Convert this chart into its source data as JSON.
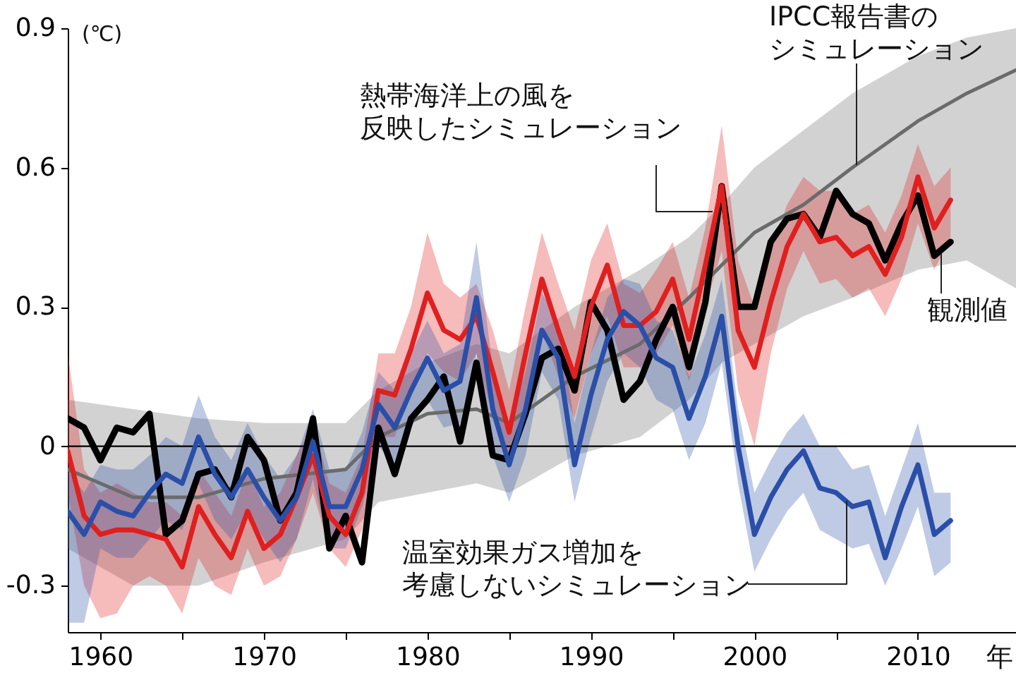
{
  "chart_data": {
    "type": "line",
    "ylabel": "(℃)",
    "xlabel": "年",
    "x": [
      1958,
      1959,
      1960,
      1961,
      1962,
      1963,
      1964,
      1965,
      1966,
      1967,
      1968,
      1969,
      1970,
      1971,
      1972,
      1973,
      1974,
      1975,
      1976,
      1977,
      1978,
      1979,
      1980,
      1981,
      1982,
      1983,
      1984,
      1985,
      1986,
      1987,
      1988,
      1989,
      1990,
      1991,
      1992,
      1993,
      1994,
      1995,
      1996,
      1997,
      1998,
      1999,
      2000,
      2001,
      2002,
      2003,
      2004,
      2005,
      2006,
      2007,
      2008,
      2009,
      2010,
      2011,
      2012
    ],
    "xlim": [
      1958,
      2016
    ],
    "xticks": [
      1960,
      {
        "value": 1965,
        "label": null
      },
      1970,
      {
        "value": 1975,
        "label": null
      },
      1980,
      {
        "value": 1985,
        "label": null
      },
      1990,
      {
        "value": 1995,
        "label": null
      },
      2000,
      {
        "value": 2005,
        "label": null
      },
      2010
    ],
    "ylim": [
      -0.4,
      0.9
    ],
    "yticks": [
      -0.3,
      0,
      0.3,
      0.6,
      0.9
    ],
    "grid": false,
    "marker": "none",
    "line_style": "solid",
    "ref_lines": [
      {
        "axis": "y",
        "value": 0,
        "color": "#000000"
      }
    ],
    "series": [
      {
        "name": "IPCC報告書のシミュレーション",
        "color": "#6b6b6b",
        "x": [
          1958,
          1962,
          1966,
          1970,
          1975,
          1977,
          1980,
          1983,
          1985,
          1989,
          1993,
          1996,
          1998,
          2000,
          2003,
          2006,
          2010,
          2013,
          2016
        ],
        "values": [
          -0.05,
          -0.11,
          -0.11,
          -0.07,
          -0.05,
          0.02,
          0.07,
          0.08,
          0.05,
          0.15,
          0.22,
          0.32,
          0.39,
          0.46,
          0.52,
          0.6,
          0.7,
          0.76,
          0.81
        ],
        "lower": [
          -0.22,
          -0.3,
          -0.3,
          -0.25,
          -0.2,
          -0.12,
          -0.1,
          -0.08,
          -0.1,
          -0.02,
          0.02,
          0.1,
          0.18,
          0.22,
          0.28,
          0.32,
          0.38,
          0.4,
          0.34
        ],
        "upper": [
          0.1,
          0.08,
          0.06,
          0.05,
          0.05,
          0.12,
          0.18,
          0.22,
          0.2,
          0.3,
          0.38,
          0.45,
          0.52,
          0.6,
          0.68,
          0.76,
          0.84,
          0.88,
          0.9
        ]
      },
      {
        "name": "観測値",
        "color": "#000000",
        "values": [
          0.06,
          0.04,
          -0.03,
          0.04,
          0.03,
          0.07,
          -0.19,
          -0.16,
          -0.06,
          -0.05,
          -0.11,
          0.02,
          -0.03,
          -0.16,
          -0.1,
          0.06,
          -0.22,
          -0.15,
          -0.25,
          0.04,
          -0.06,
          0.06,
          0.1,
          0.15,
          0.01,
          0.18,
          -0.02,
          -0.03,
          0.07,
          0.19,
          0.21,
          0.12,
          0.31,
          0.25,
          0.1,
          0.14,
          0.23,
          0.3,
          0.17,
          0.31,
          0.56,
          0.3,
          0.3,
          0.44,
          0.49,
          0.5,
          0.45,
          0.55,
          0.5,
          0.48,
          0.4,
          0.48,
          0.54,
          0.41,
          0.44
        ]
      },
      {
        "name": "熱帯海洋上の風を反映したシミュレーション",
        "color": "#e01f1f",
        "values": [
          -0.01,
          -0.15,
          -0.19,
          -0.18,
          -0.18,
          -0.19,
          -0.2,
          -0.26,
          -0.13,
          -0.19,
          -0.24,
          -0.14,
          -0.22,
          -0.19,
          -0.11,
          -0.02,
          -0.15,
          -0.19,
          -0.1,
          0.12,
          0.11,
          0.21,
          0.33,
          0.25,
          0.23,
          0.28,
          0.16,
          0.03,
          0.2,
          0.36,
          0.25,
          0.15,
          0.3,
          0.39,
          0.26,
          0.26,
          0.29,
          0.36,
          0.23,
          0.39,
          0.56,
          0.25,
          0.17,
          0.31,
          0.43,
          0.5,
          0.44,
          0.45,
          0.41,
          0.43,
          0.37,
          0.45,
          0.58,
          0.47,
          0.53
        ],
        "upper": [
          0.2,
          -0.05,
          -0.1,
          -0.08,
          -0.1,
          -0.12,
          -0.12,
          -0.15,
          -0.05,
          -0.1,
          -0.15,
          -0.05,
          -0.13,
          -0.1,
          -0.02,
          0.05,
          -0.08,
          -0.1,
          -0.02,
          0.2,
          0.2,
          0.3,
          0.46,
          0.35,
          0.32,
          0.35,
          0.25,
          0.12,
          0.3,
          0.46,
          0.35,
          0.25,
          0.4,
          0.48,
          0.35,
          0.33,
          0.38,
          0.44,
          0.32,
          0.47,
          0.69,
          0.4,
          0.3,
          0.42,
          0.52,
          0.58,
          0.55,
          0.55,
          0.5,
          0.52,
          0.46,
          0.54,
          0.65,
          0.56,
          0.6
        ],
        "lower": [
          -0.1,
          -0.3,
          -0.37,
          -0.36,
          -0.3,
          -0.28,
          -0.3,
          -0.36,
          -0.24,
          -0.3,
          -0.32,
          -0.22,
          -0.3,
          -0.28,
          -0.2,
          -0.1,
          -0.22,
          -0.26,
          -0.18,
          0.02,
          0.02,
          0.12,
          0.2,
          0.16,
          0.14,
          0.2,
          0.06,
          -0.05,
          0.1,
          0.25,
          0.15,
          0.06,
          0.2,
          0.28,
          0.17,
          0.17,
          0.2,
          0.26,
          0.14,
          0.3,
          0.42,
          0.12,
          0.0,
          0.2,
          0.34,
          0.42,
          0.35,
          0.36,
          0.32,
          0.34,
          0.28,
          0.36,
          0.48,
          0.38,
          0.45
        ]
      },
      {
        "name": "温室効果ガス増加を考慮しないシミュレーション",
        "color": "#2a4fa8",
        "values": [
          -0.14,
          -0.19,
          -0.12,
          -0.14,
          -0.15,
          -0.1,
          -0.06,
          -0.08,
          0.02,
          -0.06,
          -0.11,
          -0.05,
          -0.11,
          -0.16,
          -0.11,
          0.01,
          -0.13,
          -0.13,
          -0.05,
          0.09,
          0.04,
          0.12,
          0.19,
          0.12,
          0.14,
          0.32,
          0.08,
          -0.04,
          0.08,
          0.25,
          0.19,
          -0.04,
          0.11,
          0.23,
          0.29,
          0.26,
          0.19,
          0.17,
          0.06,
          0.15,
          0.28,
          0.0,
          -0.19,
          -0.11,
          -0.05,
          -0.01,
          -0.09,
          -0.1,
          -0.13,
          -0.12,
          -0.24,
          -0.13,
          -0.04,
          -0.19,
          -0.16
        ],
        "upper": [
          -0.05,
          -0.1,
          -0.04,
          -0.05,
          -0.05,
          -0.02,
          0.02,
          0.0,
          0.11,
          0.02,
          -0.03,
          0.05,
          -0.02,
          -0.07,
          -0.02,
          0.08,
          -0.05,
          -0.05,
          0.03,
          0.16,
          0.12,
          0.2,
          0.27,
          0.2,
          0.22,
          0.44,
          0.17,
          0.05,
          0.16,
          0.33,
          0.27,
          0.05,
          0.2,
          0.32,
          0.36,
          0.35,
          0.27,
          0.25,
          0.15,
          0.24,
          0.36,
          0.08,
          -0.1,
          -0.03,
          0.03,
          0.07,
          0.0,
          0.0,
          -0.05,
          -0.04,
          -0.15,
          -0.05,
          0.05,
          -0.1,
          -0.1
        ],
        "lower": [
          -0.38,
          -0.38,
          -0.22,
          -0.24,
          -0.24,
          -0.2,
          -0.16,
          -0.18,
          -0.08,
          -0.16,
          -0.2,
          -0.14,
          -0.2,
          -0.25,
          -0.2,
          -0.07,
          -0.22,
          -0.22,
          -0.13,
          0.0,
          -0.04,
          0.04,
          0.1,
          0.04,
          0.05,
          0.2,
          -0.02,
          -0.12,
          -0.02,
          0.16,
          0.1,
          -0.12,
          0.02,
          0.14,
          0.2,
          0.17,
          0.1,
          0.08,
          -0.03,
          0.05,
          0.18,
          -0.08,
          -0.27,
          -0.2,
          -0.14,
          -0.1,
          -0.18,
          -0.2,
          -0.22,
          -0.21,
          -0.3,
          -0.22,
          -0.13,
          -0.28,
          -0.25
        ]
      }
    ]
  }
}
